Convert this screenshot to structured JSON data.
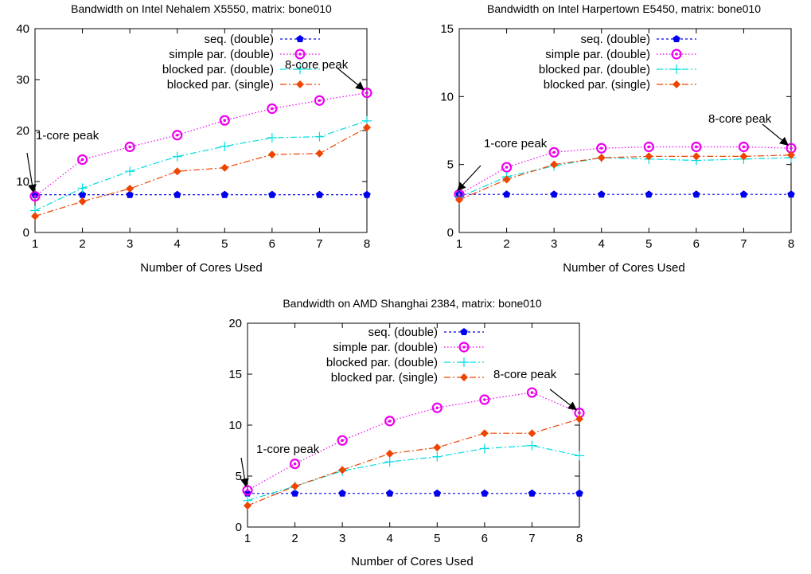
{
  "figure": {
    "xlabel": "Number of Cores Used",
    "series_names": [
      "seq. (double)",
      "simple par. (double)",
      "blocked par. (double)",
      "blocked par. (single)"
    ],
    "series_colors": [
      "#0000ee",
      "#ee00ee",
      "#00dddd",
      "#ee4400"
    ],
    "annotation_1core": "1-core peak",
    "annotation_8core": "8-core peak"
  },
  "chart_data": [
    {
      "type": "line",
      "title": "Bandwidth on Intel Nehalem X5550, matrix: bone010",
      "xlabel": "Number of Cores Used",
      "ylabel": "",
      "x": [
        1,
        2,
        3,
        4,
        5,
        6,
        7,
        8
      ],
      "xlim": [
        1,
        8
      ],
      "ylim": [
        0,
        40
      ],
      "yticks": [
        0,
        10,
        20,
        30,
        40
      ],
      "legend": "top-left",
      "series": [
        {
          "name": "seq. (double)",
          "values": [
            7.4,
            7.4,
            7.4,
            7.4,
            7.4,
            7.4,
            7.4,
            7.4
          ]
        },
        {
          "name": "simple par. (double)",
          "values": [
            7.1,
            14.3,
            16.8,
            19.1,
            22.0,
            24.3,
            25.9,
            27.4
          ]
        },
        {
          "name": "blocked par. (double)",
          "values": [
            4.3,
            8.7,
            12.0,
            14.9,
            16.9,
            18.6,
            18.8,
            21.9
          ]
        },
        {
          "name": "blocked par. (single)",
          "values": [
            3.2,
            6.1,
            8.6,
            12.0,
            12.7,
            15.3,
            15.5,
            20.6
          ]
        }
      ],
      "annotations": [
        {
          "text": "1-core peak",
          "x": 1,
          "y": 7.1
        },
        {
          "text": "8-core peak",
          "x": 8,
          "y": 27.4
        }
      ]
    },
    {
      "type": "line",
      "title": "Bandwidth on Intel Harpertown E5450, matrix: bone010",
      "xlabel": "Number of Cores Used",
      "ylabel": "",
      "x": [
        1,
        2,
        3,
        4,
        5,
        6,
        7,
        8
      ],
      "xlim": [
        1,
        8
      ],
      "ylim": [
        0,
        15
      ],
      "yticks": [
        0,
        5,
        10,
        15
      ],
      "legend": "top-left",
      "series": [
        {
          "name": "seq. (double)",
          "values": [
            2.8,
            2.8,
            2.8,
            2.8,
            2.8,
            2.8,
            2.8,
            2.8
          ]
        },
        {
          "name": "simple par. (double)",
          "values": [
            2.8,
            4.8,
            5.9,
            6.2,
            6.3,
            6.3,
            6.3,
            6.2
          ]
        },
        {
          "name": "blocked par. (double)",
          "values": [
            2.6,
            4.1,
            4.9,
            5.5,
            5.4,
            5.3,
            5.4,
            5.5
          ]
        },
        {
          "name": "blocked par. (single)",
          "values": [
            2.4,
            3.9,
            5.0,
            5.5,
            5.6,
            5.6,
            5.6,
            5.7
          ]
        }
      ],
      "annotations": [
        {
          "text": "1-core peak",
          "x": 1,
          "y": 2.8
        },
        {
          "text": "8-core peak",
          "x": 8,
          "y": 6.2
        }
      ]
    },
    {
      "type": "line",
      "title": "Bandwidth on AMD Shanghai 2384, matrix: bone010",
      "xlabel": "Number of Cores Used",
      "ylabel": "",
      "x": [
        1,
        2,
        3,
        4,
        5,
        6,
        7,
        8
      ],
      "xlim": [
        1,
        8
      ],
      "ylim": [
        0,
        20
      ],
      "yticks": [
        0,
        5,
        10,
        15,
        20
      ],
      "legend": "top-left",
      "series": [
        {
          "name": "seq. (double)",
          "values": [
            3.3,
            3.3,
            3.3,
            3.3,
            3.3,
            3.3,
            3.3,
            3.3
          ]
        },
        {
          "name": "simple par. (double)",
          "values": [
            3.6,
            6.2,
            8.5,
            10.4,
            11.7,
            12.5,
            13.2,
            11.2
          ]
        },
        {
          "name": "blocked par. (double)",
          "values": [
            2.6,
            4.0,
            5.5,
            6.4,
            6.9,
            7.7,
            8.0,
            7.0
          ]
        },
        {
          "name": "blocked par. (single)",
          "values": [
            2.1,
            4.0,
            5.6,
            7.2,
            7.8,
            9.2,
            9.2,
            10.6
          ]
        }
      ],
      "annotations": [
        {
          "text": "1-core peak",
          "x": 1,
          "y": 3.6
        },
        {
          "text": "8-core peak",
          "x": 8,
          "y": 11.2
        }
      ]
    }
  ]
}
